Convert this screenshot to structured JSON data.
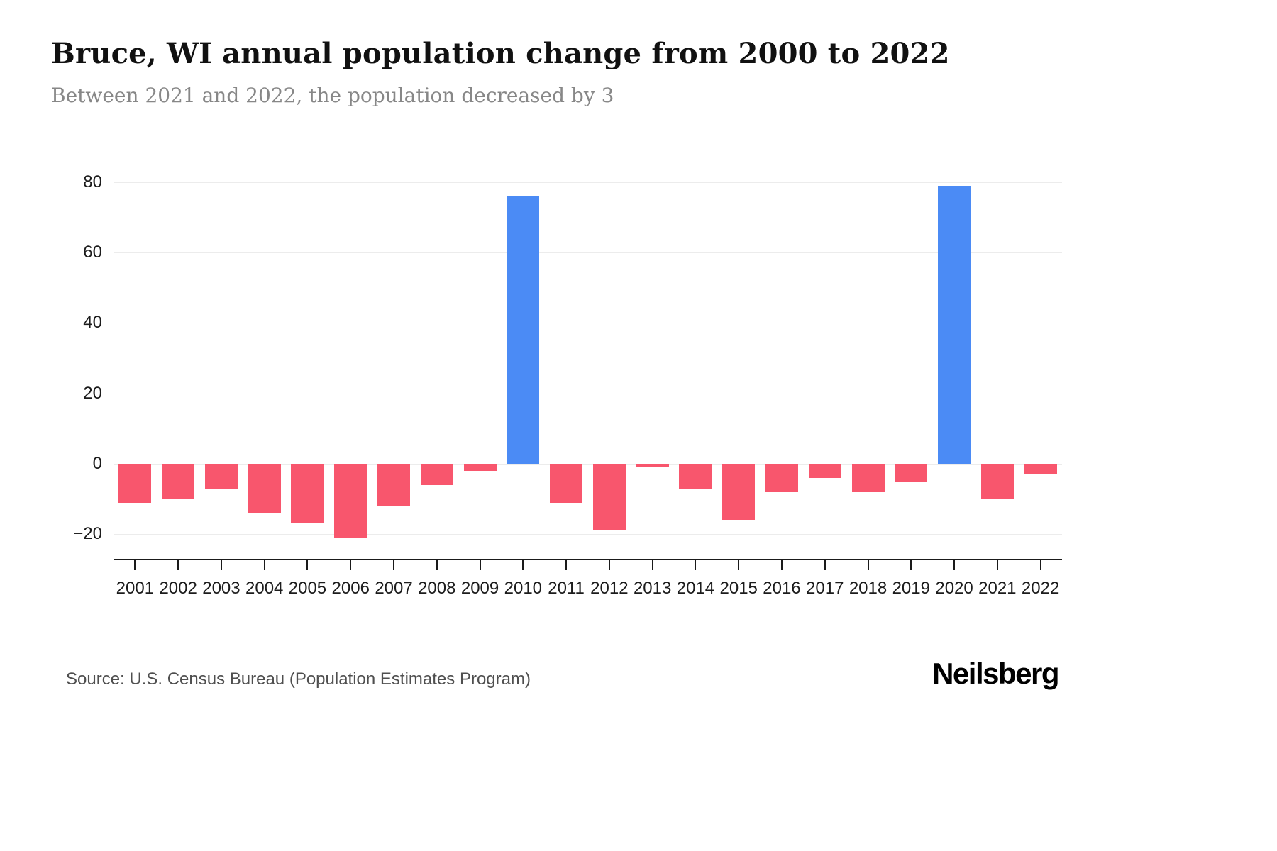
{
  "page": {
    "title": "Bruce, WI annual population change from 2000 to 2022",
    "subtitle": "Between 2021 and 2022, the population decreased by 3",
    "source": "Source: U.S. Census Bureau (Population Estimates Program)",
    "logo": "Neilsberg"
  },
  "chart_data": {
    "type": "bar",
    "title": "Bruce, WI annual population change from 2000 to 2022",
    "subtitle": "Between 2021 and 2022, the population decreased by 3",
    "categories": [
      "2001",
      "2002",
      "2003",
      "2004",
      "2005",
      "2006",
      "2007",
      "2008",
      "2009",
      "2010",
      "2011",
      "2012",
      "2013",
      "2014",
      "2015",
      "2016",
      "2017",
      "2018",
      "2019",
      "2020",
      "2021",
      "2022"
    ],
    "values": [
      -11,
      -10,
      -7,
      -14,
      -17,
      -21,
      -12,
      -6,
      -2,
      76,
      -11,
      -19,
      -1,
      -7,
      -16,
      -8,
      -4,
      -8,
      -5,
      79,
      -10,
      -3
    ],
    "xlabel": "",
    "ylabel": "",
    "ylim": [
      -27,
      85
    ],
    "yticks": [
      -20,
      0,
      20,
      40,
      60,
      80
    ],
    "grid": true,
    "legend": "none",
    "colors": {
      "positive": "#4b8bf5",
      "negative": "#f8566d",
      "gridline": "#ececec",
      "axis": "#1a1a1a"
    }
  }
}
